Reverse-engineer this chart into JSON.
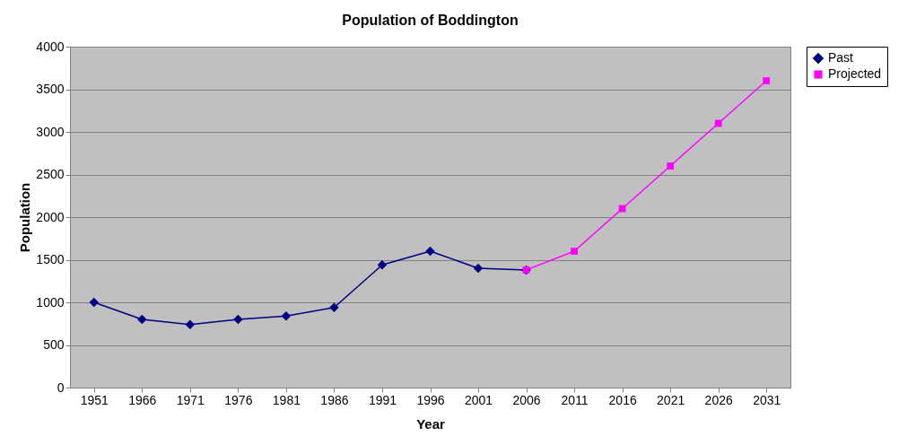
{
  "chart_data": {
    "type": "line",
    "title": "Population of Boddington",
    "xlabel": "Year",
    "ylabel": "Population",
    "categories": [
      "1951",
      "1966",
      "1971",
      "1976",
      "1981",
      "1986",
      "1991",
      "1996",
      "2001",
      "2006",
      "2011",
      "2016",
      "2021",
      "2026",
      "2031"
    ],
    "series": [
      {
        "name": "Past",
        "color": "#000080",
        "marker": "diamond",
        "values": [
          1000,
          800,
          740,
          800,
          840,
          940,
          1440,
          1600,
          1400,
          1380,
          null,
          null,
          null,
          null,
          null
        ]
      },
      {
        "name": "Projected",
        "color": "#ff00ff",
        "marker": "square",
        "values": [
          null,
          null,
          null,
          null,
          null,
          null,
          null,
          null,
          null,
          1380,
          1600,
          2100,
          2600,
          3100,
          3600
        ]
      }
    ],
    "ylim": [
      0,
      4000
    ],
    "yticks": [
      0,
      500,
      1000,
      1500,
      2000,
      2500,
      3000,
      3500,
      4000
    ],
    "grid": "y",
    "legend": "right",
    "line_style": "solid"
  }
}
